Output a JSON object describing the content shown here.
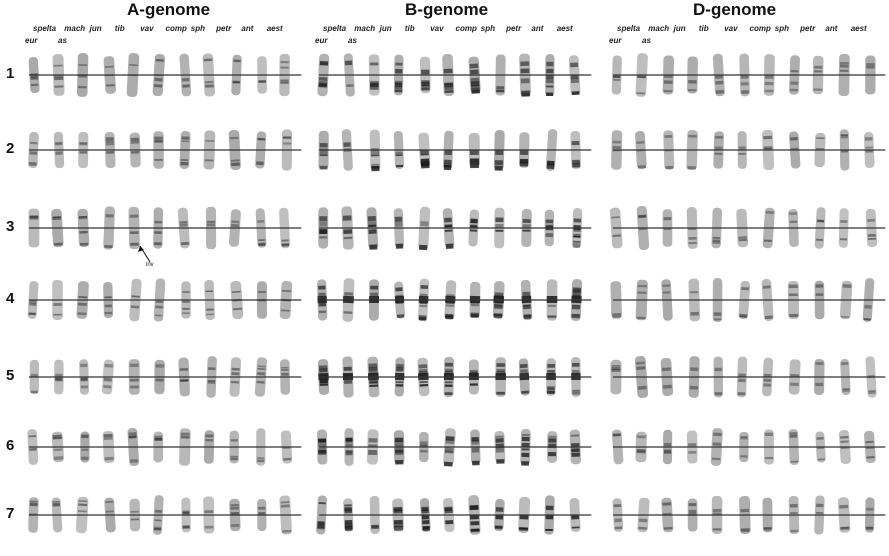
{
  "genomes": [
    {
      "name": "A-genome"
    },
    {
      "name": "B-genome"
    },
    {
      "name": "D-genome"
    }
  ],
  "accessions_row1": [
    "spelta",
    "mach",
    "jun",
    "tib",
    "vav",
    "comp",
    "sph",
    "petr",
    "ant",
    "aest"
  ],
  "accessions_row2": [
    "eur",
    "as"
  ],
  "chromosome_numbers": [
    "1",
    "2",
    "3",
    "4",
    "5",
    "6",
    "7"
  ],
  "annotation": "inv",
  "colors": {
    "chromosome": "#8c8c8c",
    "band": "#1a1a1a",
    "line": "#333333",
    "background": "#ffffff"
  }
}
